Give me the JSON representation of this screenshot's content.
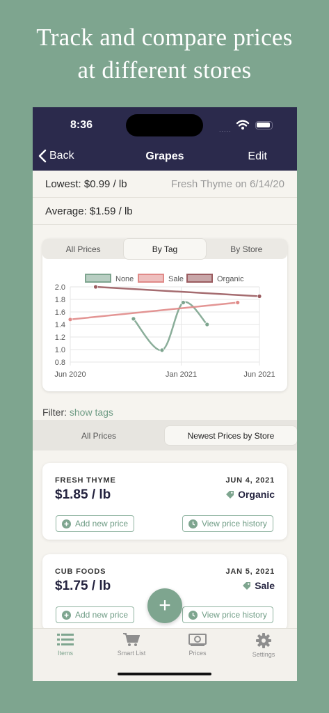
{
  "headline": {
    "line1": "Track and compare prices",
    "line2": "at different stores"
  },
  "status": {
    "time": "8:36",
    "dots": "....."
  },
  "nav": {
    "back_label": "Back",
    "title": "Grapes",
    "edit_label": "Edit"
  },
  "stats": {
    "lowest": "Lowest: $0.99 / lb",
    "lowest_source": "Fresh Thyme on 6/14/20",
    "average": "Average: $1.59 / lb"
  },
  "chart_tabs": [
    "All Prices",
    "By Tag",
    "By Store"
  ],
  "chart_tab_active": 1,
  "chart_data": {
    "type": "line",
    "x_ticks": [
      "Jun 2020",
      "Jan 2021",
      "Jun 2021"
    ],
    "y_ticks": [
      "2.0",
      "1.8",
      "1.6",
      "1.4",
      "1.2",
      "1.0",
      "0.8"
    ],
    "ylim": [
      0.8,
      2.0
    ],
    "xlim": [
      "2020-06-01",
      "2021-06-01"
    ],
    "legend_position": "top",
    "grid": true,
    "series": [
      {
        "name": "None",
        "color": "#7ea58f",
        "smooth": true,
        "points": [
          {
            "x": "2020-10-01",
            "y": 1.49
          },
          {
            "x": "2020-11-25",
            "y": 0.99
          },
          {
            "x": "2021-01-05",
            "y": 1.75
          },
          {
            "x": "2021-02-20",
            "y": 1.4
          }
        ]
      },
      {
        "name": "Sale",
        "color": "#e08a88",
        "smooth": false,
        "points": [
          {
            "x": "2020-06-01",
            "y": 1.48
          },
          {
            "x": "2021-04-20",
            "y": 1.75
          }
        ]
      },
      {
        "name": "Organic",
        "color": "#9b5c60",
        "smooth": false,
        "points": [
          {
            "x": "2020-07-20",
            "y": 2.0
          },
          {
            "x": "2021-06-01",
            "y": 1.85
          }
        ]
      }
    ]
  },
  "filter": {
    "label": "Filter:",
    "link": "show tags"
  },
  "list_tabs": [
    "All Prices",
    "Newest Prices by Store"
  ],
  "list_tab_active": 1,
  "prices": [
    {
      "store": "FRESH THYME",
      "date": "JUN 4, 2021",
      "amount": "$1.85 / lb",
      "tag": "Organic",
      "add": "Add new price",
      "history": "View price history"
    },
    {
      "store": "CUB FOODS",
      "date": "JAN 5, 2021",
      "amount": "$1.75 / lb",
      "tag": "Sale",
      "add": "Add new price",
      "history": "View price history"
    }
  ],
  "fab": "+",
  "tabs": [
    {
      "label": "Items",
      "icon": "list-icon",
      "active": true
    },
    {
      "label": "Smart List",
      "icon": "cart-icon",
      "active": false
    },
    {
      "label": "Prices",
      "icon": "money-icon",
      "active": false
    },
    {
      "label": "Settings",
      "icon": "gear-icon",
      "active": false
    }
  ],
  "colors": {
    "accent": "#7ea58f",
    "nav": "#2b2a4c",
    "text_dark": "#24233f"
  }
}
